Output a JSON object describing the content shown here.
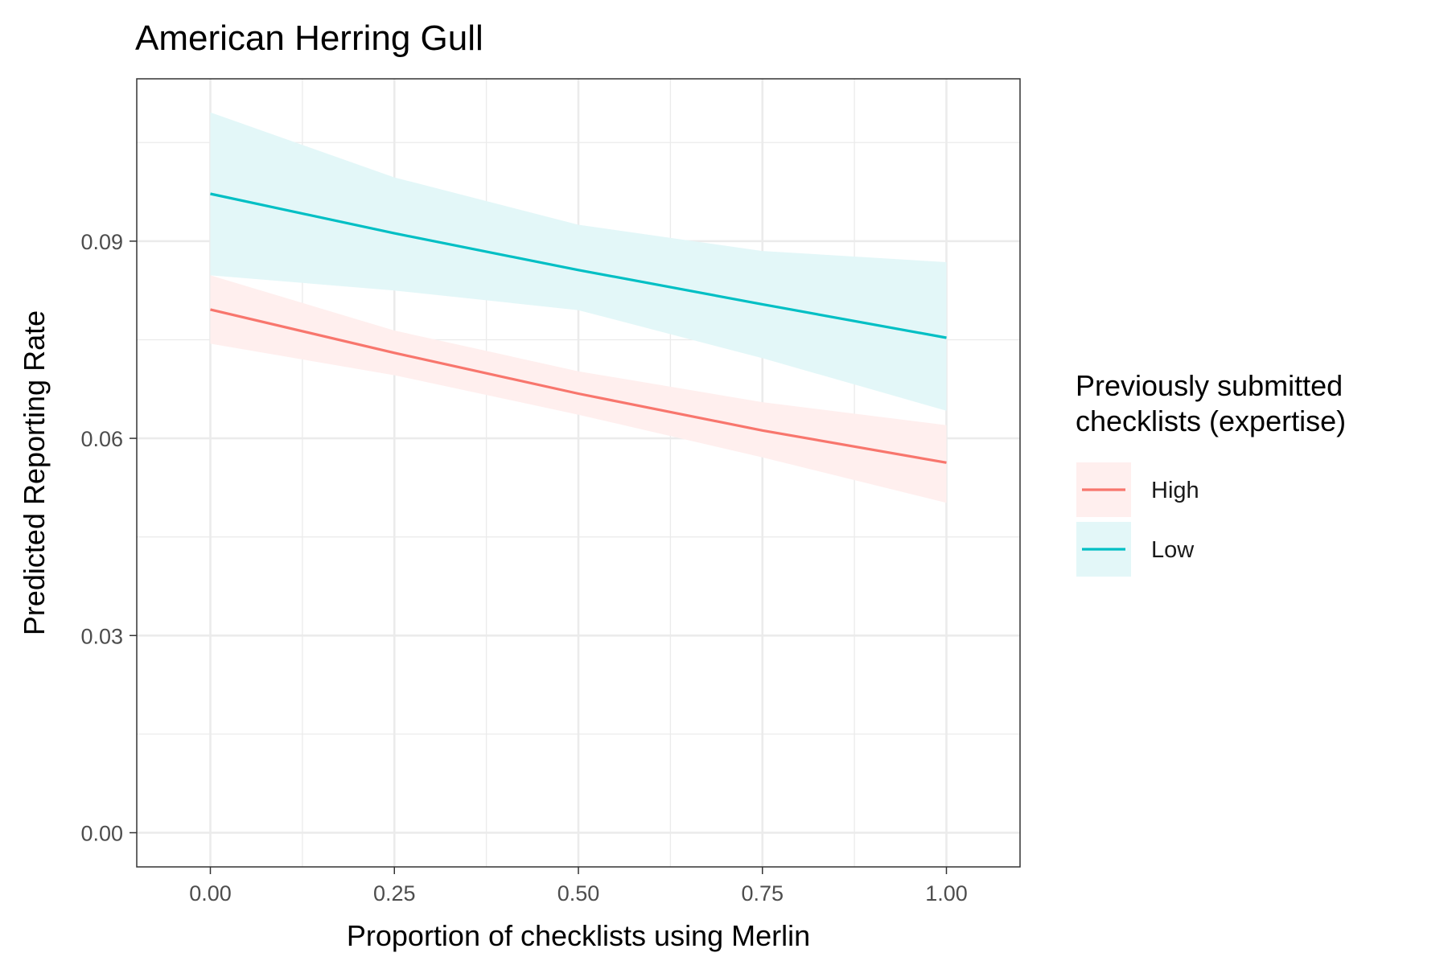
{
  "chart_data": {
    "type": "line",
    "title": "American Herring Gull",
    "xlabel": "Proportion of checklists using Merlin",
    "ylabel": "Predicted Reporting Rate",
    "xlim": [
      -0.1,
      1.1
    ],
    "ylim": [
      -0.0052,
      0.1147
    ],
    "x_ticks": [
      0,
      0.25,
      0.5,
      0.75,
      1
    ],
    "x_tick_labels": [
      "0.00",
      "0.25",
      "0.50",
      "0.75",
      "1.00"
    ],
    "y_ticks": [
      0,
      0.03,
      0.06,
      0.09
    ],
    "y_tick_labels": [
      "0.00",
      "0.03",
      "0.06",
      "0.09"
    ],
    "grid": true,
    "legend": {
      "title_lines": [
        "Previously submitted",
        "checklists (expertise)"
      ],
      "placement": "right"
    },
    "series": [
      {
        "name": "High",
        "color": "#F8766D",
        "ribbon_color": "#FFEFEE",
        "x": [
          0,
          0.25,
          0.5,
          0.75,
          1
        ],
        "y": [
          0.0796,
          0.073,
          0.0668,
          0.0612,
          0.0563
        ],
        "lower": [
          0.0744,
          0.0696,
          0.0636,
          0.0571,
          0.0502
        ],
        "upper": [
          0.0848,
          0.0764,
          0.0702,
          0.0655,
          0.062
        ]
      },
      {
        "name": "Low",
        "color": "#00BFC4",
        "ribbon_color": "#E3F7F8",
        "x": [
          0,
          0.25,
          0.5,
          0.75,
          1
        ],
        "y": [
          0.0972,
          0.0912,
          0.0856,
          0.0804,
          0.0753
        ],
        "lower": [
          0.0848,
          0.0825,
          0.0795,
          0.0722,
          0.0642
        ],
        "upper": [
          0.1096,
          0.0997,
          0.0925,
          0.0885,
          0.0868
        ]
      }
    ]
  }
}
